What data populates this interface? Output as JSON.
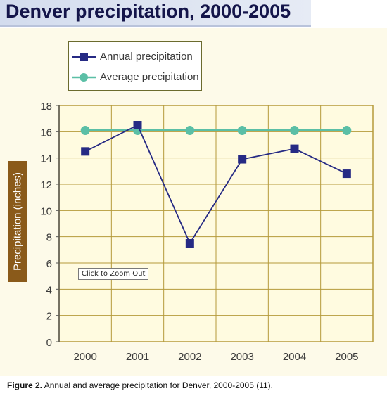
{
  "page": {
    "title": "Denver precipitation, 2000-2005",
    "zoom_button": "Click to Zoom Out",
    "caption_label": "Figure 2.",
    "caption_text": "Annual and average precipitation for Denver, 2000-2005 (11)."
  },
  "colors": {
    "annual": "#262a84",
    "average": "#5bbfa6",
    "grid": "#b59a3a",
    "panel": "#fdfae9",
    "ylabel_tab": "#8a5a1a"
  },
  "chart_data": {
    "type": "line",
    "title": "Denver precipitation, 2000-2005",
    "xlabel": "",
    "ylabel": "Precipitation (inches)",
    "categories": [
      "2000",
      "2001",
      "2002",
      "2003",
      "2004",
      "2005"
    ],
    "series": [
      {
        "name": "Annual precipitation",
        "marker": "square",
        "values": [
          14.5,
          16.5,
          7.5,
          13.9,
          14.7,
          12.8
        ]
      },
      {
        "name": "Average precipitation",
        "marker": "circle",
        "values": [
          16.1,
          16.1,
          16.1,
          16.1,
          16.1,
          16.1
        ]
      }
    ],
    "ylim": [
      0,
      18
    ],
    "yticks": [
      "0",
      "2",
      "4",
      "6",
      "8",
      "10",
      "12",
      "14",
      "16",
      "18"
    ],
    "grid": true,
    "legend_position": "top-left"
  }
}
